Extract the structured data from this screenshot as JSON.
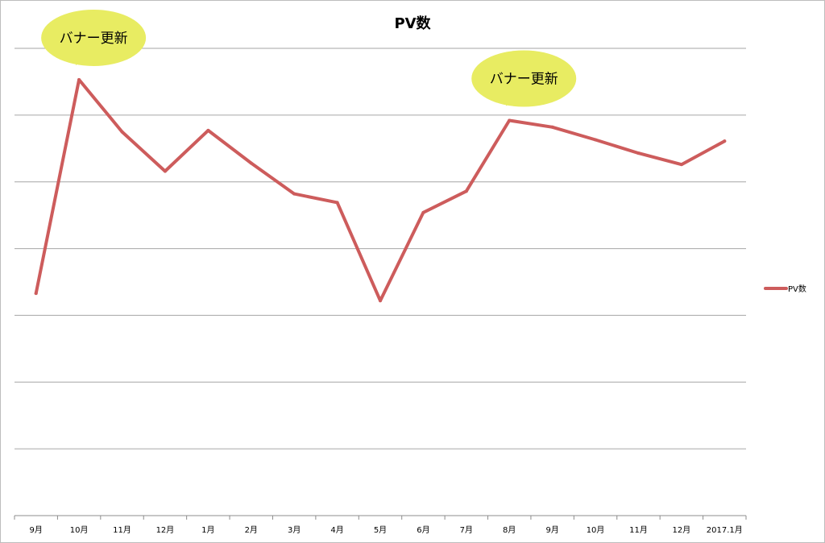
{
  "chart_data": {
    "type": "line",
    "title": "PV数",
    "xlabel": "",
    "ylabel": "",
    "categories": [
      "9月",
      "10月",
      "11月",
      "12月",
      "1月",
      "2月",
      "3月",
      "4月",
      "5月",
      "6月",
      "7月",
      "8月",
      "9月",
      "10月",
      "11月",
      "12月",
      "2017.1月"
    ],
    "series": [
      {
        "name": "PV数",
        "color": "#cd5c5c",
        "values": [
          2.33,
          5.53,
          4.75,
          4.16,
          4.77,
          4.28,
          3.82,
          3.69,
          2.22,
          3.54,
          3.86,
          4.92,
          4.82,
          4.63,
          4.43,
          4.26,
          4.61
        ]
      }
    ],
    "ylim": [
      -1,
      6
    ],
    "y_gridlines": [
      0,
      1,
      2,
      3,
      4,
      5,
      6
    ],
    "y_tick_labels_shown": false,
    "grid": true,
    "legend_position": "right",
    "annotations": [
      {
        "text": "バナー更新",
        "category_index": 1,
        "shape": "speech-bubble",
        "fill": "#e8ec62"
      },
      {
        "text": "バナー更新",
        "category_index": 11,
        "shape": "speech-bubble",
        "fill": "#e8ec62"
      }
    ]
  }
}
